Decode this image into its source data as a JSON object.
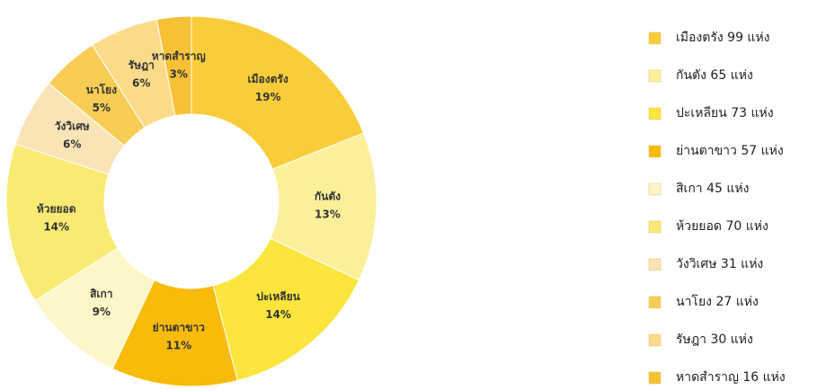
{
  "chart_data": {
    "type": "donut",
    "categories": [
      "เมืองตรัง",
      "กันตัง",
      "ปะเหลียน",
      "ย่านตาขาว",
      "สิเกา",
      "ห้วยยอด",
      "วังวิเศษ",
      "นาโยง",
      "รัษฎา",
      "หาดสำราญ"
    ],
    "values": [
      19,
      13,
      14,
      11,
      9,
      14,
      6,
      5,
      6,
      3
    ],
    "value_labels": [
      "19%",
      "13%",
      "14%",
      "11%",
      "9%",
      "14%",
      "6%",
      "5%",
      "6%",
      "3%"
    ],
    "colors": [
      "#f9cd3a",
      "#fbef9a",
      "#fce53c",
      "#f8bb0a",
      "#fdf6c8",
      "#f9ea73",
      "#fae4b6",
      "#f8cd56",
      "#fbdb8a",
      "#f7c136"
    ],
    "legend_labels": [
      "เมืองตรัง 99 แห่ง",
      "กันตัง 65 แห่ง",
      "ปะเหลียน 73 แห่ง",
      "ย่านตาขาว 57 แห่ง",
      "สิเกา 45 แห่ง",
      "ห้วยยอด 70 แห่ง",
      "วังวิเศษ 31 แห่ง",
      "นาโยง 27 แห่ง",
      "รัษฎา 30 แห่ง",
      "หาดสำราญ 16 แห่ง"
    ],
    "legend": "right"
  }
}
